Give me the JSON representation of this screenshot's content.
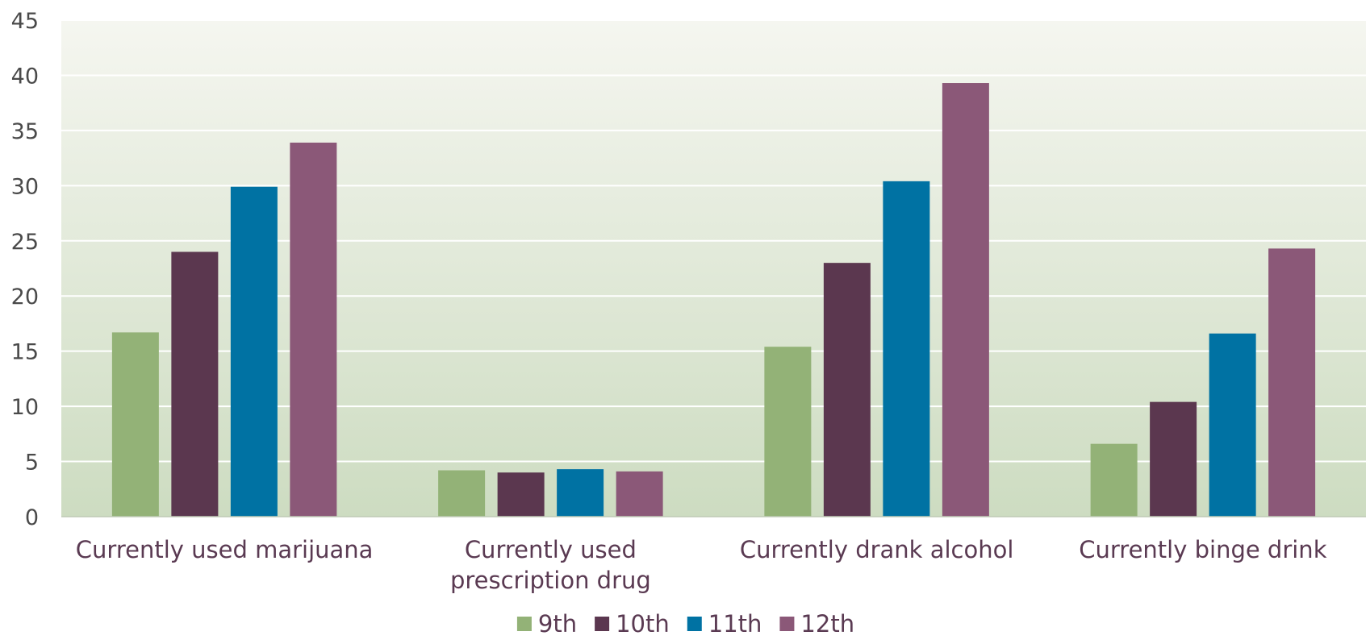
{
  "chart_data": {
    "type": "bar",
    "categories": [
      [
        "Currently used marijuana"
      ],
      [
        "Currently used",
        "prescription drug"
      ],
      [
        "Currently drank alcohol"
      ],
      [
        "Currently binge drink"
      ]
    ],
    "series": [
      {
        "name": "9th",
        "color": "#93b277",
        "values": [
          16.7,
          4.2,
          15.4,
          6.6
        ]
      },
      {
        "name": "10th",
        "color": "#5b374f",
        "values": [
          24.0,
          4.0,
          23.0,
          10.4
        ]
      },
      {
        "name": "11th",
        "color": "#0072a3",
        "values": [
          29.9,
          4.3,
          30.4,
          16.6
        ]
      },
      {
        "name": "12th",
        "color": "#8b5878",
        "values": [
          33.9,
          4.1,
          39.3,
          24.3
        ]
      }
    ],
    "ylim": [
      0,
      45
    ],
    "yticks": [
      0,
      5,
      10,
      15,
      20,
      25,
      30,
      35,
      40,
      45
    ],
    "grid": true,
    "legend": "bottom-center",
    "title": "",
    "xlabel": "",
    "ylabel": ""
  }
}
